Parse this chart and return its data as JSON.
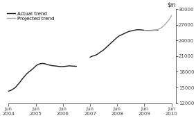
{
  "ylim": [
    12000,
    30000
  ],
  "yticks": [
    12000,
    15000,
    18000,
    21000,
    24000,
    27000,
    30000
  ],
  "xlabel_ticks": [
    "Jun\n2004",
    "Jun\n2005",
    "Jun\n2006",
    "Jun\n2007",
    "Jun\n2008",
    "Jun\n2009",
    "Jun\n2010"
  ],
  "actual_color": "#1a1a1a",
  "projected_color": "#aaaaaa",
  "background_color": "#ffffff",
  "legend_actual": "Actual trend",
  "legend_projected": "Projected trend",
  "seg1_x": [
    0.0,
    0.083,
    0.167,
    0.25,
    0.333,
    0.417,
    0.5,
    0.583,
    0.667,
    0.75,
    0.833,
    0.917,
    1.0,
    1.083,
    1.167,
    1.25,
    1.333,
    1.417,
    1.5,
    1.583,
    1.667,
    1.75,
    1.833,
    1.917,
    2.0,
    2.083,
    2.167,
    2.25,
    2.333,
    2.417,
    2.5
  ],
  "seg1_y": [
    14300,
    14450,
    14700,
    15000,
    15500,
    16000,
    16600,
    17100,
    17600,
    18000,
    18300,
    18700,
    19100,
    19400,
    19550,
    19600,
    19550,
    19400,
    19300,
    19200,
    19150,
    19100,
    19050,
    19000,
    19000,
    19050,
    19100,
    19150,
    19100,
    19080,
    19050
  ],
  "seg2_x": [
    3.0,
    3.083,
    3.167,
    3.25,
    3.333,
    3.417,
    3.5,
    3.583,
    3.667,
    3.75,
    3.833,
    3.917,
    4.0,
    4.083,
    4.167,
    4.25,
    4.333,
    4.417,
    4.5,
    4.583,
    4.667,
    4.75,
    4.833,
    4.917,
    5.0,
    5.083,
    5.167,
    5.25,
    5.333,
    5.417,
    5.5
  ],
  "seg2_y": [
    20800,
    21000,
    21100,
    21300,
    21600,
    21900,
    22200,
    22600,
    23000,
    23400,
    23800,
    24200,
    24600,
    24900,
    25100,
    25300,
    25500,
    25700,
    25800,
    25900,
    26000,
    26050,
    26050,
    26000,
    25950,
    25900,
    25900,
    25920,
    25950,
    25970,
    25970
  ],
  "proj_x": [
    5.0,
    5.083,
    5.167,
    5.25,
    5.333,
    5.417,
    5.5,
    5.583,
    5.667,
    5.75,
    5.833,
    5.917,
    6.0
  ],
  "proj_y": [
    25950,
    25900,
    25920,
    25950,
    25970,
    26000,
    26100,
    26300,
    26600,
    27000,
    27500,
    28000,
    28800
  ]
}
